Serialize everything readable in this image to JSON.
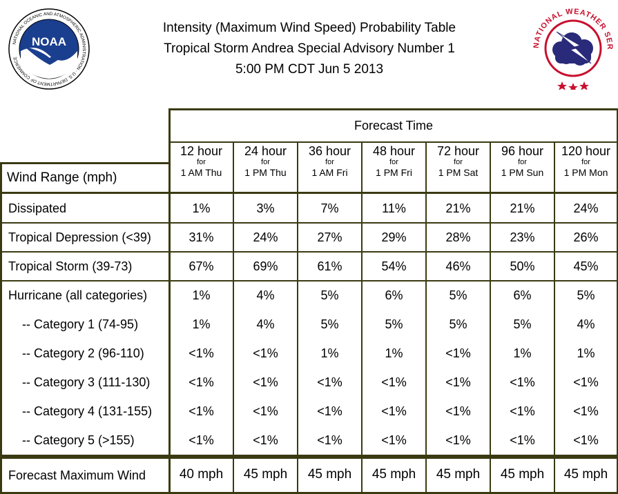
{
  "header": {
    "title_line1": "Intensity (Maximum Wind Speed) Probability Table",
    "title_line2": "Tropical Storm Andrea Special Advisory Number 1",
    "title_line3": "5:00 PM CDT Jun 5 2013"
  },
  "logos": {
    "noaa_text": "NOAA",
    "noaa_ring": "NATIONAL OCEANIC AND ATMOSPHERIC ADMINISTRATION · U.S. DEPARTMENT OF COMMERCE",
    "nws_ring": "NATIONAL WEATHER SERVICE"
  },
  "table": {
    "group_header": "Forecast Time",
    "row_header_label": "Wind Range (mph)",
    "columns": [
      {
        "hour": "12 hour",
        "for": "for",
        "when": "1 AM Thu"
      },
      {
        "hour": "24 hour",
        "for": "for",
        "when": "1 PM Thu"
      },
      {
        "hour": "36 hour",
        "for": "for",
        "when": "1 AM Fri"
      },
      {
        "hour": "48 hour",
        "for": "for",
        "when": "1 PM Fri"
      },
      {
        "hour": "72 hour",
        "for": "for",
        "when": "1 PM Sat"
      },
      {
        "hour": "96 hour",
        "for": "for",
        "when": "1 PM Sun"
      },
      {
        "hour": "120 hour",
        "for": "for",
        "when": "1 PM Mon"
      }
    ],
    "rows": [
      {
        "label": "Dissipated",
        "values": [
          "1%",
          "3%",
          "7%",
          "11%",
          "21%",
          "21%",
          "24%"
        ]
      },
      {
        "label": "Tropical Depression (<39)",
        "values": [
          "31%",
          "24%",
          "27%",
          "29%",
          "28%",
          "23%",
          "26%"
        ]
      },
      {
        "label": "Tropical Storm (39-73)",
        "values": [
          "67%",
          "69%",
          "61%",
          "54%",
          "46%",
          "50%",
          "45%"
        ]
      },
      {
        "label": "Hurricane (all categories)",
        "values": [
          "1%",
          "4%",
          "5%",
          "6%",
          "5%",
          "6%",
          "5%"
        ]
      },
      {
        "label": "-- Category 1 (74-95)",
        "values": [
          "1%",
          "4%",
          "5%",
          "5%",
          "5%",
          "5%",
          "4%"
        ]
      },
      {
        "label": "-- Category 2 (96-110)",
        "values": [
          "<1%",
          "<1%",
          "1%",
          "1%",
          "<1%",
          "1%",
          "1%"
        ]
      },
      {
        "label": "-- Category 3 (111-130)",
        "values": [
          "<1%",
          "<1%",
          "<1%",
          "<1%",
          "<1%",
          "<1%",
          "<1%"
        ]
      },
      {
        "label": "-- Category 4 (131-155)",
        "values": [
          "<1%",
          "<1%",
          "<1%",
          "<1%",
          "<1%",
          "<1%",
          "<1%"
        ]
      },
      {
        "label": "-- Category 5 (>155)",
        "values": [
          "<1%",
          "<1%",
          "<1%",
          "<1%",
          "<1%",
          "<1%",
          "<1%"
        ]
      }
    ],
    "footer": {
      "label": "Forecast Maximum Wind",
      "values": [
        "40 mph",
        "45 mph",
        "45 mph",
        "45 mph",
        "45 mph",
        "45 mph",
        "45 mph"
      ]
    }
  },
  "colors": {
    "border": "#3a3a12",
    "noaa_blue": "#1b3f8f",
    "nws_red": "#c8102e",
    "nws_cloud": "#2a2a7a"
  }
}
